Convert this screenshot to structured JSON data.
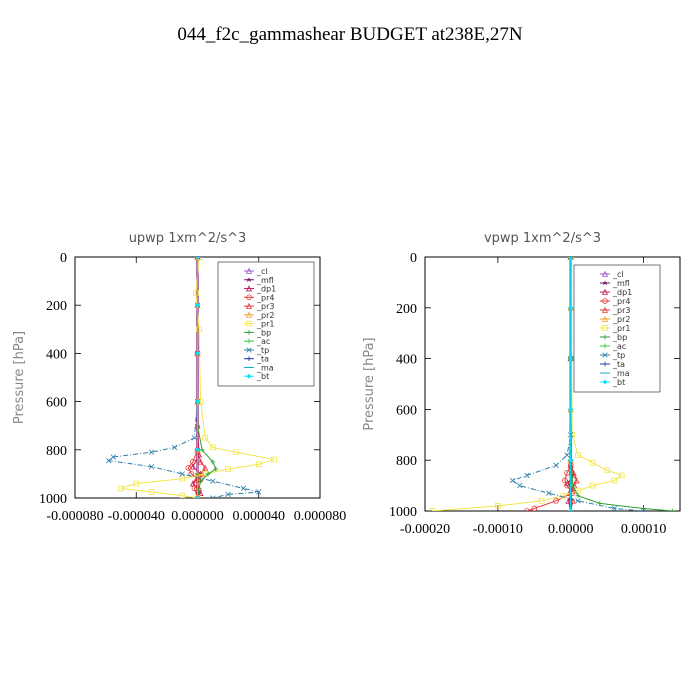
{
  "figure_title": "044_f2c_gammashear  BUDGET at238E,27N",
  "legend_labels": [
    "_cl",
    "_mfl",
    "_dp1",
    "_pr4",
    "_pr3",
    "_pr2",
    "_pr1",
    "_bp",
    "_ac",
    "_tp",
    "_ta",
    "_ma",
    "_bt"
  ],
  "legend_colors": [
    "#9b59d0",
    "#7b1a6e",
    "#c2185b",
    "#e53935",
    "#e53935",
    "#f0a030",
    "#f2e64a",
    "#2e9e2e",
    "#33cc33",
    "#2a7fa8",
    "#2a3aa8",
    "#1aa8c0",
    "#00e5ff"
  ],
  "chart_data": [
    {
      "type": "line",
      "title": "upwp   1xm^2/s^3",
      "ylabel": "Pressure [hPa]",
      "xlim": [
        -8e-05,
        8e-05
      ],
      "ylim": [
        1000,
        0
      ],
      "x_ticks": [
        -8e-05,
        -4e-05,
        0.0,
        4e-05,
        8e-05
      ],
      "x_tick_labels": [
        "-0.000080",
        "-0.000040",
        "0.000000",
        "0.000040",
        "0.000080"
      ],
      "y_ticks": [
        0,
        200,
        400,
        600,
        800,
        1000
      ],
      "y_tick_labels": [
        "0",
        "200",
        "400",
        "600",
        "800",
        "1000"
      ],
      "legend_position": "top-right",
      "series": [
        {
          "name": "_cl",
          "y": [
            0,
            200,
            400,
            600,
            800,
            900,
            1000
          ],
          "x": [
            0,
            0,
            0,
            0,
            0,
            0,
            0
          ]
        },
        {
          "name": "_mfl",
          "y": [
            0,
            200,
            400,
            600,
            800,
            900,
            1000
          ],
          "x": [
            0,
            0,
            0,
            0,
            0,
            0,
            0
          ]
        },
        {
          "name": "_dp1",
          "y": [
            0,
            400,
            700,
            820,
            870,
            900,
            940,
            980,
            1000
          ],
          "x": [
            0,
            0,
            0,
            1e-06,
            -3e-06,
            2e-06,
            -3e-06,
            2e-06,
            0
          ]
        },
        {
          "name": "_pr4",
          "y": [
            0,
            400,
            800,
            850,
            875,
            900,
            925,
            960,
            1000
          ],
          "x": [
            0,
            0,
            0,
            -3e-06,
            -6e-06,
            -4e-06,
            2e-06,
            -2e-06,
            0
          ]
        },
        {
          "name": "_pr3",
          "y": [
            0,
            400,
            800,
            850,
            875,
            900,
            925,
            960,
            1000
          ],
          "x": [
            0,
            0,
            0,
            2e-06,
            5e-06,
            3e-06,
            -1e-06,
            1e-06,
            0
          ]
        },
        {
          "name": "_pr2",
          "y": [
            0,
            200,
            400,
            600,
            800,
            900,
            1000
          ],
          "x": [
            0,
            0,
            0,
            0,
            0,
            0,
            0
          ]
        },
        {
          "name": "_pr1",
          "y": [
            0,
            150,
            300,
            600,
            750,
            790,
            810,
            840,
            860,
            880,
            900,
            920,
            940,
            960,
            975,
            990,
            1000
          ],
          "x": [
            1e-06,
            -1e-06,
            1e-06,
            2e-06,
            5e-06,
            1e-05,
            2.5e-05,
            5e-05,
            4e-05,
            2e-05,
            5e-06,
            -1e-05,
            -4e-05,
            -5e-05,
            -3e-05,
            -1e-05,
            0
          ]
        },
        {
          "name": "_bp",
          "y": [
            0,
            400,
            700,
            800,
            850,
            880,
            900,
            930,
            960,
            1000
          ],
          "x": [
            0,
            0,
            0,
            3e-06,
            1e-05,
            1.2e-05,
            7e-06,
            2e-06,
            1e-06,
            0
          ]
        },
        {
          "name": "_ac",
          "y": [
            0,
            400,
            800,
            900,
            1000
          ],
          "x": [
            0,
            0,
            0,
            0,
            0
          ]
        },
        {
          "name": "_tp",
          "y": [
            0,
            200,
            400,
            600,
            750,
            790,
            810,
            830,
            845,
            870,
            900,
            930,
            960,
            975,
            985,
            1000
          ],
          "x": [
            0,
            0,
            0,
            0,
            -2e-06,
            -1.5e-05,
            -3e-05,
            -5.5e-05,
            -5.8e-05,
            -3e-05,
            -1e-05,
            1e-05,
            3e-05,
            4e-05,
            2e-05,
            1e-05
          ]
        },
        {
          "name": "_ta",
          "y": [
            0,
            200,
            400,
            600,
            800,
            1000
          ],
          "x": [
            0,
            0,
            0,
            0,
            0,
            0
          ]
        },
        {
          "name": "_ma",
          "y": [
            0,
            200,
            400,
            600,
            800,
            1000
          ],
          "x": [
            0,
            0,
            0,
            0,
            0,
            0
          ]
        },
        {
          "name": "_bt",
          "y": [
            0,
            200,
            400,
            600,
            800,
            1000
          ],
          "x": [
            0,
            0,
            0,
            0,
            0,
            0
          ]
        }
      ]
    },
    {
      "type": "line",
      "title": "vpwp   1xm^2/s^3",
      "ylabel": "Pressure [hPa]",
      "xlim": [
        -0.0002,
        0.00015
      ],
      "ylim": [
        1000,
        0
      ],
      "x_ticks": [
        -0.0002,
        -0.0001,
        0.0,
        0.0001
      ],
      "x_tick_labels": [
        "-0.00020",
        "-0.00010",
        "0.00000",
        "0.00010"
      ],
      "y_ticks": [
        0,
        200,
        400,
        600,
        800,
        1000
      ],
      "y_tick_labels": [
        "0",
        "200",
        "400",
        "600",
        "800",
        "1000"
      ],
      "legend_position": "top-right",
      "series": [
        {
          "name": "_cl",
          "y": [
            0,
            200,
            400,
            600,
            800,
            1000
          ],
          "x": [
            0,
            0,
            0,
            0,
            0,
            0
          ]
        },
        {
          "name": "_mfl",
          "y": [
            0,
            200,
            400,
            600,
            800,
            1000
          ],
          "x": [
            0,
            0,
            0,
            0,
            0,
            0
          ]
        },
        {
          "name": "_dp1",
          "y": [
            0,
            400,
            800,
            860,
            890,
            920,
            960,
            1000
          ],
          "x": [
            0,
            0,
            0,
            4e-06,
            -4e-06,
            3e-06,
            -3e-06,
            0
          ]
        },
        {
          "name": "_pr4",
          "y": [
            0,
            400,
            820,
            850,
            880,
            900,
            930,
            960,
            990,
            1000
          ],
          "x": [
            0,
            0,
            0,
            -5e-06,
            -8e-06,
            -5e-06,
            2e-06,
            -2e-05,
            -5e-05,
            -6e-05
          ]
        },
        {
          "name": "_pr3",
          "y": [
            0,
            400,
            820,
            850,
            880,
            900,
            930,
            960,
            1000
          ],
          "x": [
            0,
            0,
            0,
            4e-06,
            8e-06,
            5e-06,
            -2e-06,
            3e-06,
            0
          ]
        },
        {
          "name": "_pr2",
          "y": [
            0,
            200,
            400,
            600,
            800,
            1000
          ],
          "x": [
            0,
            0,
            0,
            0,
            0,
            0
          ]
        },
        {
          "name": "_pr1",
          "y": [
            0,
            400,
            700,
            780,
            810,
            840,
            860,
            880,
            900,
            920,
            940,
            960,
            980,
            1000
          ],
          "x": [
            1e-06,
            1e-06,
            2e-06,
            1e-05,
            3e-05,
            5e-05,
            7e-05,
            6e-05,
            3e-05,
            1e-05,
            -1e-05,
            -4e-05,
            -0.0001,
            -0.00019
          ]
        },
        {
          "name": "_bp",
          "y": [
            0,
            400,
            800,
            900,
            940,
            970,
            990,
            1000
          ],
          "x": [
            0,
            0,
            0,
            3e-06,
            1e-05,
            4e-05,
            0.0001,
            0.00014
          ]
        },
        {
          "name": "_ac",
          "y": [
            0,
            400,
            800,
            900,
            1000
          ],
          "x": [
            0,
            0,
            0,
            0,
            0
          ]
        },
        {
          "name": "_tp",
          "y": [
            0,
            400,
            700,
            780,
            820,
            860,
            880,
            900,
            930,
            960,
            990,
            1000
          ],
          "x": [
            0,
            0,
            0,
            -5e-06,
            -2e-05,
            -6e-05,
            -8e-05,
            -7e-05,
            -3e-05,
            1e-05,
            6e-05,
            0.0001
          ]
        },
        {
          "name": "_ta",
          "y": [
            0,
            200,
            400,
            600,
            800,
            1000
          ],
          "x": [
            0,
            0,
            0,
            0,
            0,
            0
          ]
        },
        {
          "name": "_ma",
          "y": [
            0,
            200,
            400,
            600,
            800,
            1000
          ],
          "x": [
            0,
            0,
            0,
            0,
            0,
            0
          ]
        },
        {
          "name": "_bt",
          "y": [
            0,
            200,
            400,
            600,
            800,
            1000
          ],
          "x": [
            0,
            0,
            0,
            0,
            0,
            0
          ]
        }
      ]
    }
  ]
}
